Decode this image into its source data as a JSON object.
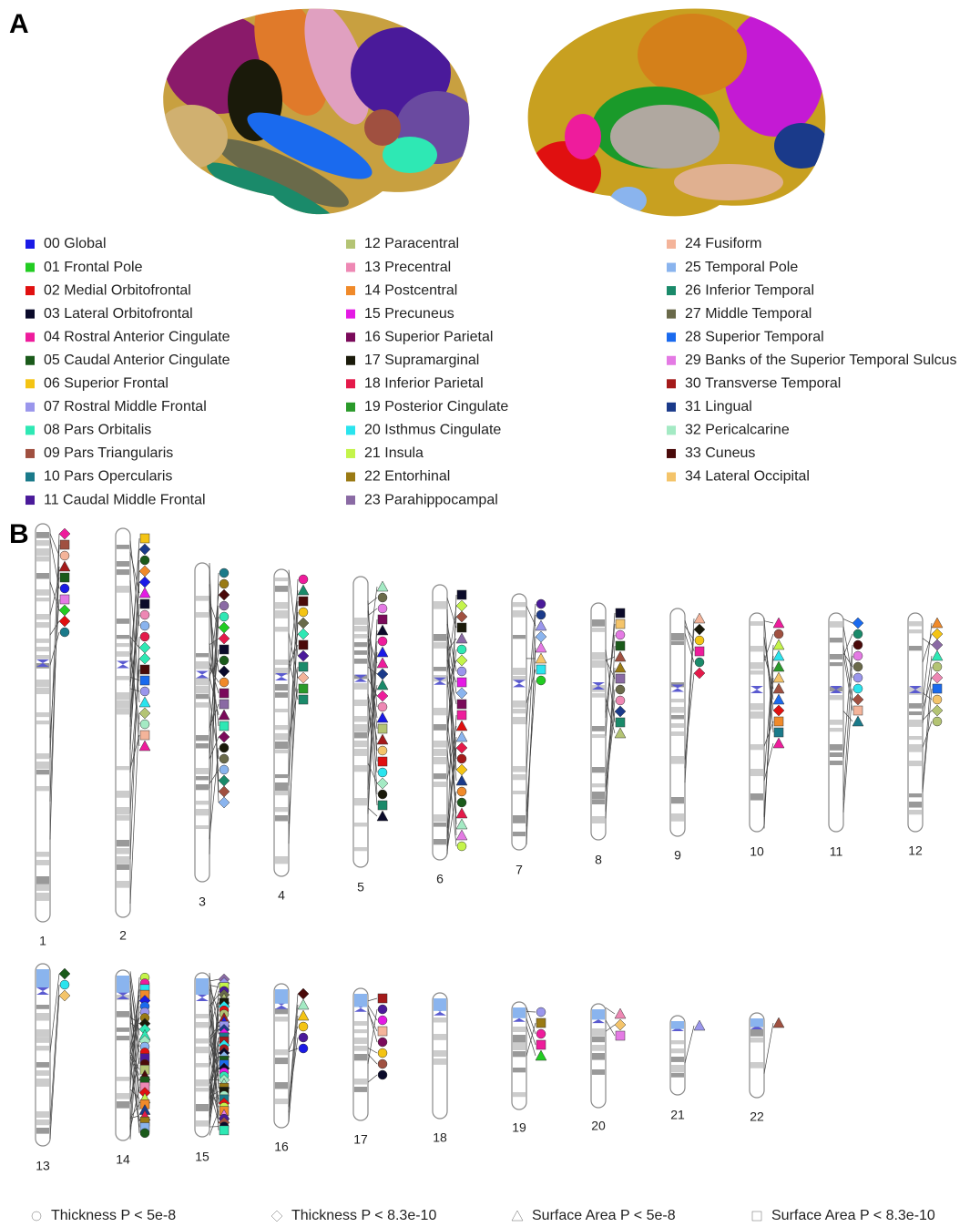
{
  "panels": [
    {
      "label": "A"
    },
    {
      "label": "B"
    }
  ],
  "legend": {
    "items": [
      {
        "label": "00 Global",
        "color": "#1a1ae6"
      },
      {
        "label": "01 Frontal Pole",
        "color": "#22cc22"
      },
      {
        "label": "02 Medial Orbitofrontal",
        "color": "#e01010"
      },
      {
        "label": "03 Lateral Orbitofrontal",
        "color": "#0a0a2a"
      },
      {
        "label": "04 Rostral Anterior Cingulate",
        "color": "#ee1c9c"
      },
      {
        "label": "05 Caudal Anterior Cingulate",
        "color": "#1a5a1a"
      },
      {
        "label": "06 Superior Frontal",
        "color": "#f4c414"
      },
      {
        "label": "07 Rostral Middle Frontal",
        "color": "#9a96ec"
      },
      {
        "label": "08 Pars Orbitalis",
        "color": "#2ee8b4"
      },
      {
        "label": "09 Pars Triangularis",
        "color": "#a05040"
      },
      {
        "label": "10 Pars Opercularis",
        "color": "#1a7a8a"
      },
      {
        "label": "11 Caudal Middle Frontal",
        "color": "#4a1a9a"
      },
      {
        "label": "12 Paracentral",
        "color": "#b4c474"
      },
      {
        "label": "13 Precentral",
        "color": "#ee88b4"
      },
      {
        "label": "14 Postcentral",
        "color": "#f08a2a"
      },
      {
        "label": "15 Precuneus",
        "color": "#e41ae4"
      },
      {
        "label": "16 Superior Parietal",
        "color": "#7a0a5a"
      },
      {
        "label": "17 Supramarginal",
        "color": "#1a1a0a"
      },
      {
        "label": "18 Inferior Parietal",
        "color": "#e41a4a"
      },
      {
        "label": "19 Posterior Cingulate",
        "color": "#2a9a2a"
      },
      {
        "label": "20 Isthmus Cingulate",
        "color": "#2ae4ee"
      },
      {
        "label": "21 Insula",
        "color": "#c4f44a"
      },
      {
        "label": "22 Entorhinal",
        "color": "#9a7a14"
      },
      {
        "label": "23 Parahippocampal",
        "color": "#8a6aa4"
      },
      {
        "label": "24 Fusiform",
        "color": "#f4b49a"
      },
      {
        "label": "25 Temporal Pole",
        "color": "#8ab4ee"
      },
      {
        "label": "26 Inferior Temporal",
        "color": "#1a8a6a"
      },
      {
        "label": "27 Middle Temporal",
        "color": "#6a6a4a"
      },
      {
        "label": "28 Superior Temporal",
        "color": "#1a6aee"
      },
      {
        "label": "29 Banks of the Superior Temporal Sulcus",
        "color": "#e47ae4"
      },
      {
        "label": "30 Transverse Temporal",
        "color": "#a41a1a"
      },
      {
        "label": "31 Lingual",
        "color": "#1a3a8a"
      },
      {
        "label": "32 Pericalcarine",
        "color": "#a4eac4"
      },
      {
        "label": "33 Cuneus",
        "color": "#4a0a0a"
      },
      {
        "label": "34 Lateral Occipital",
        "color": "#f4c46a"
      }
    ]
  },
  "chromosomes": {
    "labels": [
      "1",
      "2",
      "3",
      "4",
      "5",
      "6",
      "7",
      "8",
      "9",
      "10",
      "11",
      "12",
      "13",
      "14",
      "15",
      "16",
      "17",
      "18",
      "19",
      "20",
      "21",
      "22"
    ]
  },
  "key": {
    "items": [
      "Thickness P < 5e-8",
      "Thickness P < 8.3e-10",
      "Surface Area P < 5e-8",
      "Surface Area P < 8.3e-10"
    ]
  }
}
